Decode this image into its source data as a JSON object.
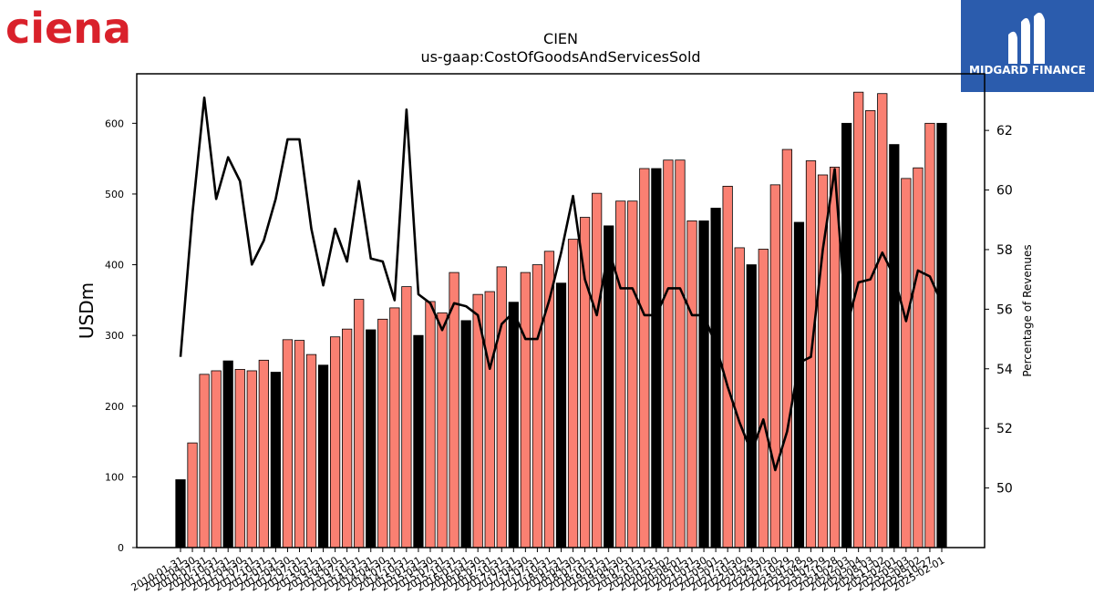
{
  "brand": {
    "left_logo_text": "ciena",
    "left_logo_color": "#d9212b",
    "right_logo_text": "MIDGARD FINANCE",
    "right_logo_bg": "#2b5cad"
  },
  "chart_data": {
    "type": "bar",
    "title": "CIEN",
    "subtitle": "us-gaap:CostOfGoodsAndServicesSold",
    "ylabel": "USDm",
    "y2label": "Percentage of Revenues",
    "ylim": [
      0,
      670
    ],
    "y2lim": [
      48.0,
      63.9
    ],
    "yticks": [
      0,
      100,
      200,
      300,
      400,
      500,
      600
    ],
    "y2ticks": [
      50,
      52,
      54,
      56,
      58,
      60,
      62
    ],
    "colors": {
      "quarterly": "#fa8072",
      "annual": "#000000",
      "line": "#000000"
    },
    "categories": [
      "2010-01-31",
      "2010-04-30",
      "2010-07-31",
      "2010-10-31",
      "2011-01-31",
      "2011-04-30",
      "2011-07-31",
      "2011-10-31",
      "2012-01-31",
      "2012-04-30",
      "2012-07-31",
      "2012-10-31",
      "2013-01-31",
      "2013-04-30",
      "2013-07-31",
      "2013-10-31",
      "2014-01-31",
      "2014-04-30",
      "2014-07-31",
      "2014-10-31",
      "2015-01-31",
      "2015-04-30",
      "2015-07-31",
      "2015-10-31",
      "2016-01-31",
      "2016-04-30",
      "2016-07-31",
      "2016-10-31",
      "2017-01-31",
      "2017-04-30",
      "2017-07-31",
      "2017-10-31",
      "2018-01-31",
      "2018-04-30",
      "2018-07-31",
      "2018-10-31",
      "2019-01-31",
      "2019-04-30",
      "2019-07-31",
      "2019-10-31",
      "2020-01-31",
      "2020-05-02",
      "2020-08-01",
      "2020-10-31",
      "2021-01-30",
      "2021-05-01",
      "2021-07-31",
      "2021-10-30",
      "2022-01-29",
      "2022-04-30",
      "2022-07-30",
      "2022-10-29",
      "2023-01-28",
      "2023-04-29",
      "2023-07-29",
      "2023-10-28",
      "2024-02-03",
      "2024-05-04",
      "2024-08-03",
      "2024-11-02",
      "2025-02-01",
      "2025-05-03",
      "2025-08-02",
      "2025-10-27",
      "2025-02-01"
    ],
    "values": [
      96,
      148,
      245,
      250,
      264,
      252,
      250,
      265,
      248,
      294,
      293,
      273,
      258,
      298,
      309,
      351,
      308,
      323,
      339,
      369,
      300,
      348,
      332,
      389,
      321,
      358,
      362,
      397,
      347,
      389,
      400,
      419,
      374,
      436,
      467,
      501,
      455,
      490,
      490,
      536,
      536,
      548,
      548,
      462,
      462,
      480,
      511,
      424,
      400,
      422,
      513,
      563,
      460,
      547,
      527,
      538,
      600,
      644,
      618,
      642,
      570,
      522,
      537,
      600,
      600
    ],
    "annual": [
      true,
      false,
      false,
      false,
      true,
      false,
      false,
      false,
      true,
      false,
      false,
      false,
      true,
      false,
      false,
      false,
      true,
      false,
      false,
      false,
      true,
      false,
      false,
      false,
      true,
      false,
      false,
      false,
      true,
      false,
      false,
      false,
      true,
      false,
      false,
      false,
      true,
      false,
      false,
      false,
      true,
      false,
      false,
      false,
      true,
      true,
      false,
      false,
      true,
      false,
      false,
      false,
      true,
      false,
      false,
      false,
      true,
      false,
      false,
      false,
      true,
      false,
      false,
      false,
      true
    ],
    "pct_line": [
      54.4,
      59.2,
      63.1,
      59.7,
      61.1,
      60.3,
      57.5,
      58.3,
      59.7,
      61.7,
      61.7,
      58.7,
      56.8,
      58.7,
      57.6,
      60.3,
      57.7,
      57.6,
      56.3,
      62.7,
      56.5,
      56.2,
      55.3,
      56.2,
      56.1,
      55.8,
      54.0,
      55.5,
      55.9,
      55.0,
      55.0,
      56.3,
      57.9,
      59.8,
      57.0,
      55.8,
      58.0,
      56.7,
      56.7,
      55.8,
      55.8,
      56.7,
      56.7,
      55.8,
      55.8,
      54.8,
      53.4,
      52.2,
      51.2,
      52.3,
      50.6,
      51.9,
      54.2,
      54.4,
      58.0,
      60.7,
      55.4,
      56.9,
      57.0,
      57.9,
      57.1,
      55.6,
      57.3,
      57.1,
      56.2
    ]
  }
}
